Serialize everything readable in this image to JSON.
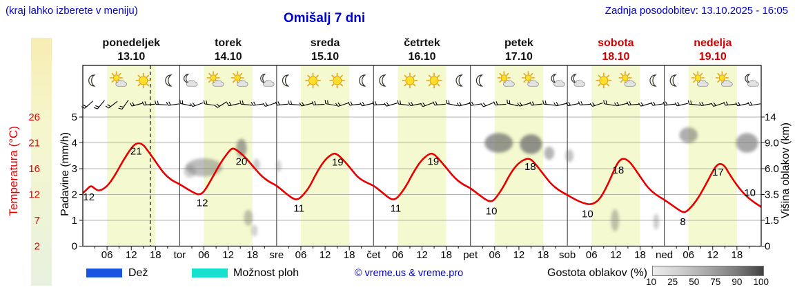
{
  "header": {
    "hint": "(kraj lahko izberete v meniju)",
    "title": "Omišalj 7 dni",
    "updated": "Zadnja posodobitev: 13.10.2025 - 16:05"
  },
  "colors": {
    "blue_text": "#0000cc",
    "red": "#e00000",
    "weekend": "#cc0000",
    "weekday": "#111111",
    "day_band": "#f4f9cf",
    "curve": "#e60000",
    "cloud_fill": "#6e6e6e",
    "rain_swatch": "#1a53e0",
    "showers_swatch": "#18e0cf"
  },
  "days": [
    {
      "name": "ponedeljek",
      "date": "13.10",
      "weekend": false
    },
    {
      "name": "torek",
      "date": "14.10",
      "weekend": false
    },
    {
      "name": "sreda",
      "date": "15.10",
      "weekend": false
    },
    {
      "name": "četrtek",
      "date": "16.10",
      "weekend": false
    },
    {
      "name": "petek",
      "date": "17.10",
      "weekend": false
    },
    {
      "name": "sobota",
      "date": "18.10",
      "weekend": true
    },
    {
      "name": "nedelja",
      "date": "19.10",
      "weekend": true
    }
  ],
  "axes": {
    "temperature": {
      "title": "Temperatura (°C)",
      "ticks": [
        "26",
        "21",
        "16",
        "12",
        "7",
        "2"
      ],
      "values": [
        26,
        21,
        16,
        12,
        7,
        2
      ]
    },
    "precip": {
      "title": "Padavine (mm/h)",
      "ticks": [
        "5",
        "4",
        "3",
        "2",
        "1",
        "0"
      ],
      "range": [
        0,
        5
      ]
    },
    "clouds": {
      "title": "Višina oblakov (km)",
      "ticks": [
        "14",
        "9.0",
        "6.0",
        "3.5",
        "1.5",
        "0"
      ]
    },
    "hour_labels": [
      "06",
      "12",
      "18"
    ],
    "midnight_labels": [
      "tor",
      "sre",
      "čet",
      "pet",
      "sob",
      "ned"
    ]
  },
  "legend": {
    "rain_label": "Dež",
    "showers_label": "Možnost ploh",
    "copyright": "© vreme.us & vreme.pro",
    "cloud_density_label": "Gostota oblakov (%)",
    "density_ticks": [
      "10",
      "25",
      "50",
      "75",
      "90",
      "100"
    ]
  },
  "chart_data": {
    "type": "line",
    "title": "Omišalj 7 dni",
    "x_unit": "hour (0 = ponedeljek 00:00)",
    "x_range": [
      0,
      168
    ],
    "current_time_hour": 16.7,
    "daily_summary": [
      {
        "day": "ponedeljek",
        "min": 12,
        "max": 21
      },
      {
        "day": "torek",
        "min": 12,
        "max": 20
      },
      {
        "day": "sreda",
        "min": 11,
        "max": 19
      },
      {
        "day": "četrtek",
        "min": 11,
        "max": 19
      },
      {
        "day": "petek",
        "min": 10,
        "max": 18
      },
      {
        "day": "sobota",
        "min": 10,
        "max": 18
      },
      {
        "day": "nedelja",
        "min": 8,
        "max": 17
      }
    ],
    "temperature_series": {
      "name": "Temperatura (°C)",
      "points": [
        [
          0,
          12.2
        ],
        [
          1,
          12.8
        ],
        [
          2,
          13.4
        ],
        [
          3,
          12.9
        ],
        [
          4,
          12.5
        ],
        [
          6,
          13.2
        ],
        [
          8,
          15.0
        ],
        [
          10,
          17.6
        ],
        [
          12,
          20.0
        ],
        [
          13,
          20.8
        ],
        [
          14,
          21.0
        ],
        [
          15,
          20.6
        ],
        [
          16,
          19.6
        ],
        [
          18,
          17.4
        ],
        [
          20,
          15.3
        ],
        [
          22,
          14.2
        ],
        [
          24,
          13.6
        ],
        [
          26,
          12.8
        ],
        [
          28,
          12.1
        ],
        [
          29,
          12.0
        ],
        [
          30,
          12.4
        ],
        [
          32,
          14.5
        ],
        [
          34,
          17.0
        ],
        [
          36,
          19.2
        ],
        [
          37,
          20.0
        ],
        [
          38,
          19.7
        ],
        [
          40,
          18.4
        ],
        [
          42,
          16.6
        ],
        [
          44,
          15.0
        ],
        [
          46,
          14.0
        ],
        [
          48,
          13.4
        ],
        [
          50,
          12.3
        ],
        [
          52,
          11.2
        ],
        [
          53,
          11.0
        ],
        [
          54,
          11.4
        ],
        [
          56,
          13.0
        ],
        [
          58,
          15.5
        ],
        [
          60,
          17.8
        ],
        [
          62,
          19.0
        ],
        [
          63,
          18.8
        ],
        [
          64,
          18.1
        ],
        [
          66,
          16.4
        ],
        [
          68,
          14.7
        ],
        [
          70,
          13.9
        ],
        [
          72,
          13.4
        ],
        [
          74,
          12.4
        ],
        [
          76,
          11.2
        ],
        [
          77,
          11.0
        ],
        [
          78,
          11.4
        ],
        [
          80,
          13.2
        ],
        [
          82,
          15.6
        ],
        [
          84,
          17.8
        ],
        [
          86,
          19.0
        ],
        [
          87,
          18.8
        ],
        [
          88,
          18.0
        ],
        [
          90,
          16.2
        ],
        [
          92,
          14.6
        ],
        [
          94,
          13.6
        ],
        [
          96,
          13.0
        ],
        [
          98,
          12.0
        ],
        [
          100,
          10.9
        ],
        [
          101,
          10.6
        ],
        [
          102,
          11.0
        ],
        [
          104,
          13.0
        ],
        [
          106,
          15.4
        ],
        [
          108,
          17.2
        ],
        [
          110,
          18.0
        ],
        [
          111,
          17.8
        ],
        [
          112,
          17.0
        ],
        [
          114,
          15.2
        ],
        [
          116,
          13.6
        ],
        [
          118,
          12.6
        ],
        [
          120,
          11.9
        ],
        [
          122,
          11.0
        ],
        [
          124,
          10.3
        ],
        [
          126,
          10.0
        ],
        [
          128,
          11.0
        ],
        [
          130,
          13.5
        ],
        [
          132,
          16.5
        ],
        [
          133,
          17.7
        ],
        [
          134,
          18.0
        ],
        [
          135,
          17.6
        ],
        [
          136,
          16.8
        ],
        [
          138,
          14.8
        ],
        [
          140,
          13.0
        ],
        [
          142,
          11.9
        ],
        [
          144,
          11.0
        ],
        [
          146,
          9.9
        ],
        [
          148,
          8.8
        ],
        [
          149,
          8.5
        ],
        [
          150,
          9.0
        ],
        [
          152,
          10.8
        ],
        [
          154,
          13.2
        ],
        [
          156,
          15.6
        ],
        [
          157,
          16.7
        ],
        [
          158,
          17.0
        ],
        [
          159,
          16.5
        ],
        [
          160,
          15.3
        ],
        [
          162,
          13.4
        ],
        [
          164,
          11.9
        ],
        [
          166,
          10.6
        ],
        [
          168,
          9.6
        ]
      ]
    },
    "temp_value_labels": [
      {
        "h": 13.2,
        "text": "21",
        "dy": 16
      },
      {
        "h": 39.3,
        "text": "20",
        "dy": 16
      },
      {
        "h": 63.1,
        "text": "19",
        "dy": 16
      },
      {
        "h": 86.8,
        "text": "19",
        "dy": 16
      },
      {
        "h": 110.8,
        "text": "18",
        "dy": 16
      },
      {
        "h": 132.6,
        "text": "18",
        "dy": 16
      },
      {
        "h": 157.3,
        "text": "17",
        "dy": 16
      },
      {
        "h": 1.5,
        "text": "12",
        "dy": 19
      },
      {
        "h": 29.6,
        "text": "12",
        "dy": 19
      },
      {
        "h": 53.5,
        "text": "11",
        "dy": 19
      },
      {
        "h": 77.5,
        "text": "11",
        "dy": 19
      },
      {
        "h": 101.2,
        "text": "10",
        "dy": 19
      },
      {
        "h": 125.0,
        "text": "10",
        "dy": 19
      },
      {
        "h": 148.6,
        "text": "8",
        "dy": 19
      },
      {
        "h": 165.2,
        "text": "10",
        "dy": -4
      }
    ],
    "icon_hours": [
      2.5,
      9,
      15,
      21.5
    ],
    "weather_icons": [
      [
        "moon",
        "sun-cloud",
        "sun",
        "moon"
      ],
      [
        "moon-cloud",
        "sun-cloud",
        "sun-cloud",
        "moon-cloud"
      ],
      [
        "moon",
        "sun",
        "sun",
        "moon"
      ],
      [
        "moon",
        "sun",
        "sun",
        "moon"
      ],
      [
        "moon",
        "sun-cloud",
        "sun-cloud",
        "moon-cloud"
      ],
      [
        "moon-cloud",
        "sun",
        "sun-cloud",
        "moon"
      ],
      [
        "moon",
        "sun-cloud",
        "sun-cloud",
        "moon-cloud"
      ]
    ],
    "cloud_blobs": [
      {
        "h": 30.0,
        "u": 3.05,
        "w": 9.0,
        "t": 0.55,
        "o": 0.45
      },
      {
        "h": 26.5,
        "u": 2.9,
        "w": 3.0,
        "t": 0.35,
        "o": 0.3
      },
      {
        "h": 39.3,
        "u": 3.8,
        "w": 2.6,
        "t": 0.55,
        "o": 0.6
      },
      {
        "h": 43.0,
        "u": 3.15,
        "w": 1.8,
        "t": 0.3,
        "o": 0.35
      },
      {
        "h": 41.0,
        "u": 1.1,
        "w": 2.2,
        "t": 0.45,
        "o": 0.4
      },
      {
        "h": 42.5,
        "u": 0.6,
        "w": 1.6,
        "t": 0.3,
        "o": 0.3
      },
      {
        "h": 48.5,
        "u": 3.1,
        "w": 1.4,
        "t": 0.3,
        "o": 0.3
      },
      {
        "h": 103.0,
        "u": 4.0,
        "w": 7.0,
        "t": 0.6,
        "o": 0.7
      },
      {
        "h": 111.0,
        "u": 3.95,
        "w": 5.5,
        "t": 0.6,
        "o": 0.75
      },
      {
        "h": 115.5,
        "u": 3.6,
        "w": 2.5,
        "t": 0.35,
        "o": 0.5
      },
      {
        "h": 120.5,
        "u": 3.5,
        "w": 2.0,
        "t": 0.35,
        "o": 0.4
      },
      {
        "h": 131.8,
        "u": 1.0,
        "w": 2.0,
        "t": 0.7,
        "o": 0.4
      },
      {
        "h": 142.0,
        "u": 0.95,
        "w": 1.4,
        "t": 0.45,
        "o": 0.35
      },
      {
        "h": 150.0,
        "u": 4.3,
        "w": 4.5,
        "t": 0.45,
        "o": 0.55
      },
      {
        "h": 164.5,
        "u": 4.0,
        "w": 5.5,
        "t": 0.6,
        "o": 0.6
      }
    ],
    "wind_barb_interval_hours": 3,
    "wind_barb_angles": [
      -42,
      -50,
      -38,
      -55,
      -15,
      -5,
      3,
      -8,
      12,
      -20,
      8,
      -32,
      -12,
      6,
      -8,
      -18,
      -6,
      4,
      -14,
      -4,
      10,
      -18,
      -7,
      -13,
      -4,
      -16,
      7,
      -11,
      -20,
      -5,
      11,
      -14,
      -9,
      -22,
      -4,
      13,
      -16,
      -7,
      6,
      -13,
      -11,
      -4,
      -18,
      9,
      -13,
      -5,
      -16,
      -9,
      -7,
      -13,
      6,
      -11,
      -18,
      -7,
      -12,
      -9
    ]
  }
}
